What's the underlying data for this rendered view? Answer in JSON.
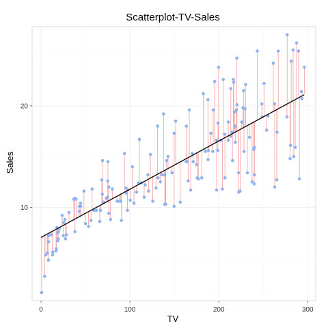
{
  "chart_data": {
    "type": "scatter",
    "title": "Scatterplot-TV-Sales",
    "xlabel": "TV",
    "ylabel": "Sales",
    "xlim": [
      -10,
      309
    ],
    "ylim": [
      0.8,
      27.8
    ],
    "x_ticks": [
      0,
      100,
      200,
      300
    ],
    "y_ticks": [
      10,
      20
    ],
    "grid": true,
    "regression_line": {
      "intercept": 7.03,
      "slope": 0.0475,
      "x_range": [
        0,
        296
      ]
    },
    "colors": {
      "points": "#8fb3ef",
      "residuals": "#f4a6a6",
      "line": "#000000",
      "panel_border": "#d0d0d0",
      "grid_major": "#ececec",
      "grid_minor": "#f6f6f6"
    },
    "points": [
      [
        0.7,
        1.6
      ],
      [
        4.1,
        3.2
      ],
      [
        5.4,
        5.3
      ],
      [
        7.3,
        5.5
      ],
      [
        8.4,
        4.8
      ],
      [
        8.6,
        6.6
      ],
      [
        8.7,
        7.2
      ],
      [
        11.7,
        7.3
      ],
      [
        13.1,
        5.3
      ],
      [
        13.2,
        5.6
      ],
      [
        16.9,
        5.7
      ],
      [
        17.2,
        5.9
      ],
      [
        17.9,
        8.0
      ],
      [
        18.7,
        6.7
      ],
      [
        18.8,
        7.5
      ],
      [
        19.4,
        6.9
      ],
      [
        19.6,
        7.6
      ],
      [
        20.5,
        7.9
      ],
      [
        23.8,
        9.2
      ],
      [
        25.1,
        7.2
      ],
      [
        25.6,
        8.5
      ],
      [
        26.8,
        8.8
      ],
      [
        27.5,
        6.9
      ],
      [
        28.6,
        7.3
      ],
      [
        31.5,
        9.5
      ],
      [
        36.9,
        10.8
      ],
      [
        38.0,
        10.9
      ],
      [
        38.2,
        7.6
      ],
      [
        39.5,
        10.8
      ],
      [
        43.0,
        9.6
      ],
      [
        43.1,
        10.1
      ],
      [
        44.5,
        10.4
      ],
      [
        44.7,
        10.1
      ],
      [
        48.3,
        11.6
      ],
      [
        50.0,
        8.4
      ],
      [
        53.5,
        8.1
      ],
      [
        56.2,
        8.7
      ],
      [
        57.5,
        11.8
      ],
      [
        59.6,
        9.7
      ],
      [
        62.3,
        9.7
      ],
      [
        66.1,
        8.6
      ],
      [
        66.9,
        9.7
      ],
      [
        68.4,
        12.7
      ],
      [
        69.0,
        11.3
      ],
      [
        69.2,
        14.6
      ],
      [
        70.6,
        10.5
      ],
      [
        73.4,
        10.9
      ],
      [
        74.7,
        11.0
      ],
      [
        75.1,
        12.6
      ],
      [
        75.3,
        14.5
      ],
      [
        76.3,
        12.0
      ],
      [
        76.4,
        9.4
      ],
      [
        78.2,
        8.8
      ],
      [
        80.2,
        11.8
      ],
      [
        85.7,
        10.6
      ],
      [
        88.3,
        10.6
      ],
      [
        89.7,
        10.6
      ],
      [
        90.4,
        8.7
      ],
      [
        93.9,
        15.3
      ],
      [
        95.7,
        11.9
      ],
      [
        96.2,
        11.4
      ],
      [
        97.2,
        9.7
      ],
      [
        97.5,
        11.7
      ],
      [
        100.4,
        10.7
      ],
      [
        102.7,
        14.0
      ],
      [
        104.6,
        10.4
      ],
      [
        107.4,
        11.5
      ],
      [
        109.8,
        12.4
      ],
      [
        110.7,
        16.7
      ],
      [
        112.9,
        12.4
      ],
      [
        116.0,
        11.0
      ],
      [
        117.2,
        12.2
      ],
      [
        120.2,
        13.2
      ],
      [
        121.0,
        11.6
      ],
      [
        123.1,
        15.2
      ],
      [
        125.7,
        10.6
      ],
      [
        129.4,
        11.9
      ],
      [
        131.1,
        18.0
      ],
      [
        131.7,
        12.9
      ],
      [
        134.3,
        12.5
      ],
      [
        136.2,
        13.2
      ],
      [
        137.9,
        19.2
      ],
      [
        139.2,
        10.3
      ],
      [
        139.3,
        13.2
      ],
      [
        139.5,
        10.3
      ],
      [
        140.3,
        10.3
      ],
      [
        141.3,
        14.6
      ],
      [
        142.9,
        15.0
      ],
      [
        147.3,
        13.4
      ],
      [
        149.7,
        10.1
      ],
      [
        149.8,
        17.3
      ],
      [
        151.5,
        18.5
      ],
      [
        156.6,
        10.5
      ],
      [
        163.3,
        14.5
      ],
      [
        163.5,
        18.0
      ],
      [
        164.5,
        14.5
      ],
      [
        165.6,
        12.6
      ],
      [
        166.8,
        19.6
      ],
      [
        168.4,
        11.7
      ],
      [
        170.2,
        15.3
      ],
      [
        171.3,
        14.5
      ],
      [
        175.1,
        14.2
      ],
      [
        175.7,
        12.9
      ],
      [
        177.0,
        12.8
      ],
      [
        180.8,
        12.9
      ],
      [
        182.6,
        21.2
      ],
      [
        184.9,
        15.5
      ],
      [
        187.8,
        20.6
      ],
      [
        187.9,
        14.7
      ],
      [
        188.4,
        15.6
      ],
      [
        191.1,
        17.3
      ],
      [
        193.2,
        15.5
      ],
      [
        193.7,
        19.6
      ],
      [
        195.4,
        22.4
      ],
      [
        197.6,
        16.6
      ],
      [
        197.6,
        11.7
      ],
      [
        198.9,
        15.6
      ],
      [
        199.1,
        18.3
      ],
      [
        199.8,
        23.8
      ],
      [
        202.5,
        16.6
      ],
      [
        204.1,
        11.8
      ],
      [
        205.0,
        22.6
      ],
      [
        206.8,
        17.2
      ],
      [
        206.9,
        12.9
      ],
      [
        210.7,
        18.4
      ],
      [
        210.8,
        16.6
      ],
      [
        213.4,
        17.0
      ],
      [
        213.5,
        21.7
      ],
      [
        214.7,
        17.4
      ],
      [
        215.4,
        14.6
      ],
      [
        216.4,
        22.6
      ],
      [
        216.8,
        22.3
      ],
      [
        217.7,
        19.4
      ],
      [
        218.4,
        18.0
      ],
      [
        218.5,
        16.4
      ],
      [
        219.8,
        19.6
      ],
      [
        220.3,
        24.7
      ],
      [
        220.5,
        20.1
      ],
      [
        222.4,
        11.5
      ],
      [
        222.4,
        13.4
      ],
      [
        224.0,
        11.6
      ],
      [
        225.8,
        18.4
      ],
      [
        227.2,
        19.8
      ],
      [
        228.0,
        21.5
      ],
      [
        228.3,
        15.5
      ],
      [
        229.5,
        19.7
      ],
      [
        230.1,
        22.1
      ],
      [
        232.1,
        13.4
      ],
      [
        234.5,
        16.9
      ],
      [
        237.4,
        12.5
      ],
      [
        239.3,
        15.7
      ],
      [
        239.8,
        12.3
      ],
      [
        239.9,
        15.9
      ],
      [
        240.1,
        15.9
      ],
      [
        240.1,
        13.2
      ],
      [
        243.2,
        25.4
      ],
      [
        248.4,
        20.2
      ],
      [
        248.8,
        18.9
      ],
      [
        250.9,
        22.2
      ],
      [
        253.8,
        17.6
      ],
      [
        255.4,
        19.0
      ],
      [
        261.3,
        24.2
      ],
      [
        262.7,
        20.2
      ],
      [
        262.9,
        12.0
      ],
      [
        265.2,
        12.7
      ],
      [
        265.6,
        17.4
      ],
      [
        266.9,
        25.4
      ],
      [
        276.7,
        18.9
      ],
      [
        276.9,
        27.0
      ],
      [
        280.2,
        14.8
      ],
      [
        280.7,
        16.1
      ],
      [
        281.4,
        24.4
      ],
      [
        283.6,
        25.5
      ],
      [
        284.3,
        15.0
      ],
      [
        286.0,
        15.9
      ],
      [
        287.6,
        26.2
      ],
      [
        289.7,
        25.4
      ],
      [
        290.7,
        12.8
      ],
      [
        292.9,
        21.4
      ],
      [
        293.6,
        20.7
      ],
      [
        296.4,
        23.8
      ]
    ]
  }
}
